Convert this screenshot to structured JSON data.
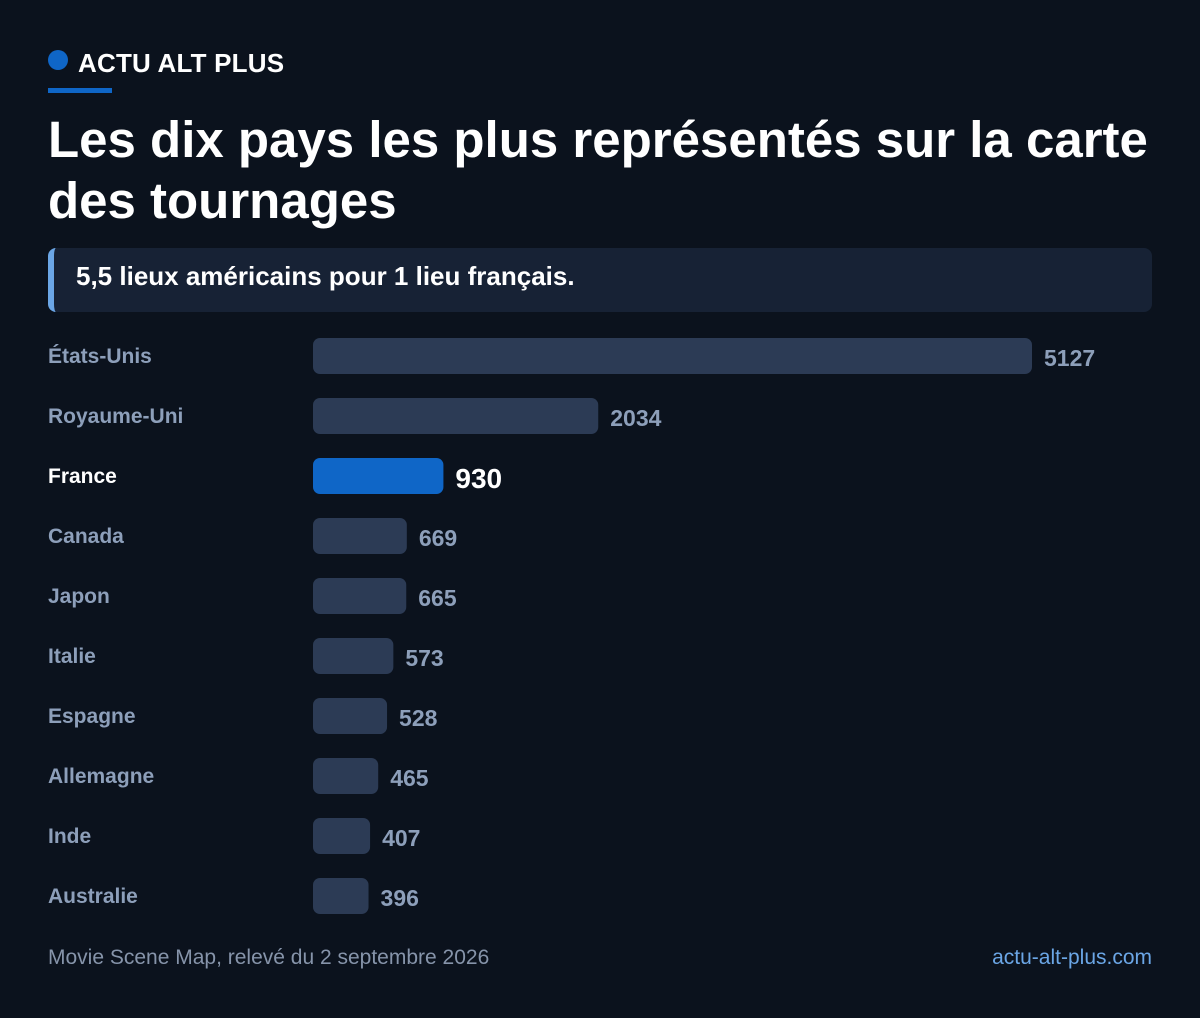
{
  "brand": {
    "name": "ACTU ALT PLUS",
    "color": "#0f66c7"
  },
  "title": "Les dix pays les plus représentés sur la carte des tournages",
  "subtitle": "5,5 lieux américains pour 1 lieu français.",
  "chart_data": {
    "type": "bar",
    "orientation": "horizontal",
    "categories": [
      "États-Unis",
      "Royaume-Uni",
      "France",
      "Canada",
      "Japon",
      "Italie",
      "Espagne",
      "Allemagne",
      "Inde",
      "Australie"
    ],
    "values": [
      5127,
      2034,
      930,
      669,
      665,
      573,
      528,
      465,
      407,
      396
    ],
    "highlight": "France",
    "colors": {
      "bar": "#2c3b55",
      "highlight": "#0f66c7"
    },
    "grid": false,
    "legend": false
  },
  "footer": {
    "source": "Movie Scene Map, relevé du 2 septembre 2026",
    "site": "actu-alt-plus.com"
  }
}
